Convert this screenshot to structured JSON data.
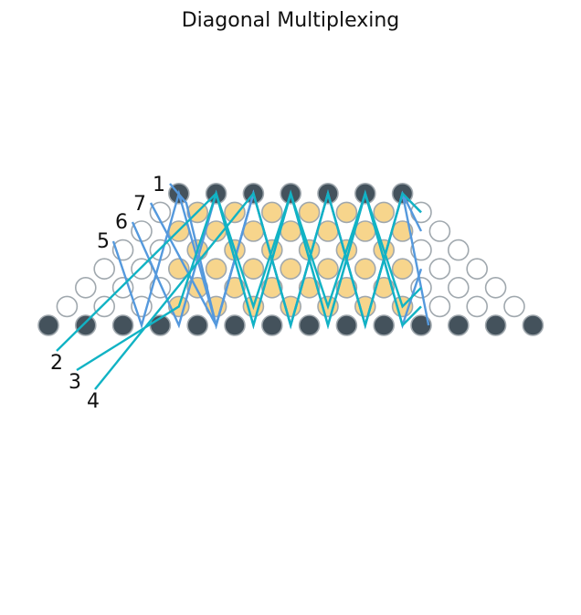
{
  "title": "Diagonal Multiplexing",
  "colors": {
    "dark_node_fill": "#44525c",
    "active_node_fill": "#f7d58c",
    "node_stroke": "#a0a8ae",
    "empty_node_fill": "#ffffff",
    "line_blue": "#5599dd",
    "line_teal": "#11b3c4"
  },
  "line_labels": [
    "1",
    "7",
    "6",
    "5",
    "2",
    "3",
    "4"
  ]
}
